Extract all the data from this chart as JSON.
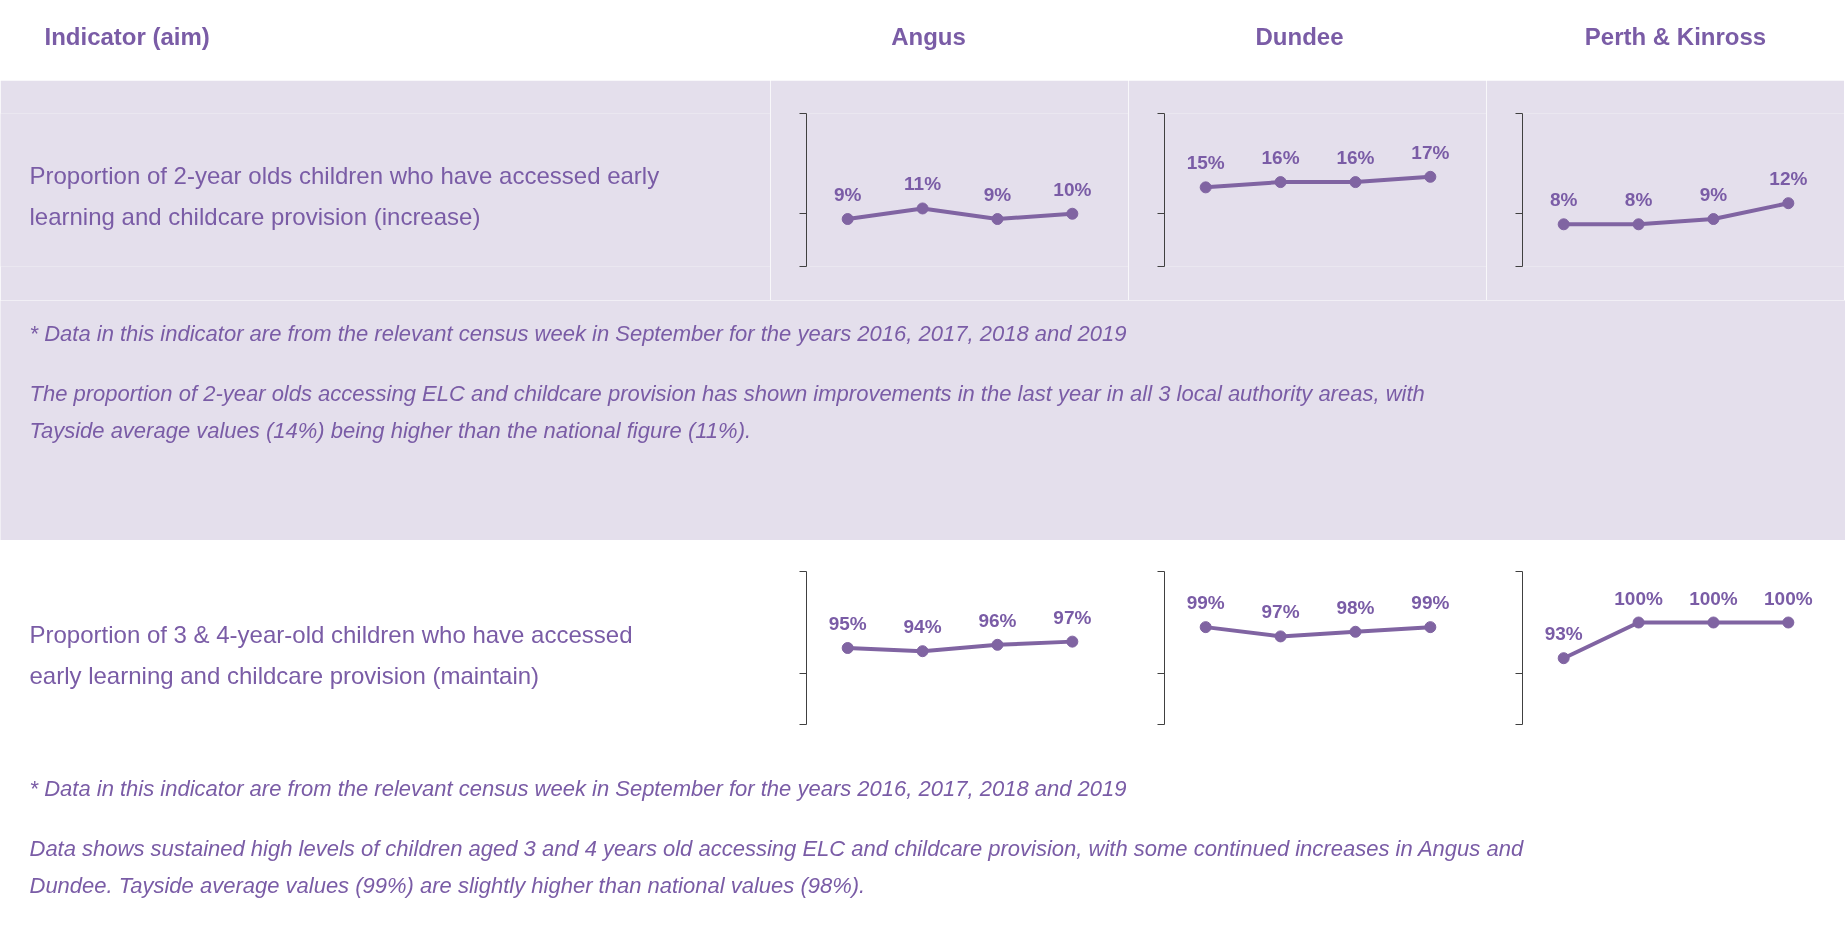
{
  "chart_data": [
    {
      "type": "other",
      "annotations": [
        "Indicator (aim)",
        "Angus",
        "Dundee",
        "Perth & Kinross"
      ]
    },
    {
      "type": "other",
      "annotations": [
        "Proportion of 2-year olds children who have accessed early learning and childcare provision (increase)"
      ]
    },
    {
      "type": "line",
      "categories": [
        null,
        null,
        null,
        null
      ],
      "values": [
        9,
        11,
        9,
        10
      ],
      "value_labels": [
        "9%",
        "11%",
        "9%",
        "10%"
      ],
      "color": "#8064a2",
      "marker": "circle",
      "ylim": [
        0,
        29
      ],
      "yticks": [
        {
          "value": 0,
          "label": null
        },
        {
          "value": 10,
          "label": null
        },
        {
          "value": 29,
          "label": null
        }
      ]
    },
    {
      "type": "line",
      "categories": [
        null,
        null,
        null,
        null
      ],
      "values": [
        15,
        16,
        16,
        17
      ],
      "value_labels": [
        "15%",
        "16%",
        "16%",
        "17%"
      ],
      "color": "#8064a2",
      "marker": "circle",
      "ylim": [
        0,
        29
      ],
      "yticks": [
        {
          "value": 0,
          "label": null
        },
        {
          "value": 10,
          "label": null
        },
        {
          "value": 29,
          "label": null
        }
      ]
    },
    {
      "type": "line",
      "categories": [
        null,
        null,
        null,
        null
      ],
      "values": [
        8,
        8,
        9,
        12
      ],
      "value_labels": [
        "8%",
        "8%",
        "9%",
        "12%"
      ],
      "color": "#8064a2",
      "marker": "circle",
      "ylim": [
        0,
        29
      ],
      "yticks": [
        {
          "value": 0,
          "label": null
        },
        {
          "value": 10,
          "label": null
        },
        {
          "value": 29,
          "label": null
        }
      ]
    },
    {
      "type": "other",
      "annotations": [
        "* Data in this indicator are from the relevant census week in September for the years 2016, 2017, 2018 and 2019",
        "The proportion of 2-year olds accessing ELC and childcare provision has shown improvements in the last year in all 3 local authority areas, with Tayside average values (14%) being higher than the national figure (11%)."
      ]
    },
    {
      "type": "other",
      "annotations": [
        "Proportion of 3 & 4-year-old children who have accessed early learning and childcare provision (maintain)"
      ]
    },
    {
      "type": "line",
      "categories": [
        null,
        null,
        null,
        null
      ],
      "values": [
        95,
        94,
        96,
        97
      ],
      "value_labels": [
        "95%",
        "94%",
        "96%",
        "97%"
      ],
      "color": "#8064a2",
      "marker": "circle",
      "ylim": [
        71,
        119
      ],
      "yticks": [
        {
          "value": 71,
          "label": null
        },
        {
          "value": 87,
          "label": null
        },
        {
          "value": 119,
          "label": null
        }
      ]
    },
    {
      "type": "line",
      "categories": [
        null,
        null,
        null,
        null
      ],
      "values": [
        99,
        97,
        98,
        99
      ],
      "value_labels": [
        "99%",
        "97%",
        "98%",
        "99%"
      ],
      "color": "#8064a2",
      "marker": "circle",
      "ylim": [
        78,
        111
      ],
      "yticks": [
        {
          "value": 78,
          "label": null
        },
        {
          "value": 89,
          "label": null
        },
        {
          "value": 111,
          "label": null
        }
      ]
    },
    {
      "type": "line",
      "categories": [
        null,
        null,
        null,
        null
      ],
      "values": [
        93,
        100,
        100,
        100
      ],
      "value_labels": [
        "93%",
        "100%",
        "100%",
        "100%"
      ],
      "color": "#8064a2",
      "marker": "circle",
      "ylim": [
        80,
        110
      ],
      "yticks": [
        {
          "value": 80,
          "label": null
        },
        {
          "value": 90,
          "label": null
        },
        {
          "value": 110,
          "label": null
        }
      ]
    },
    {
      "type": "other",
      "annotations": [
        "* Data in this indicator are from the relevant census week in September for the years 2016, 2017, 2018 and 2019",
        "Data shows sustained high levels of children aged 3 and 4 years old accessing ELC and childcare provision, with some continued increases in Angus and Dundee. Tayside average values (99%) are slightly higher than national values (98%)."
      ]
    }
  ]
}
